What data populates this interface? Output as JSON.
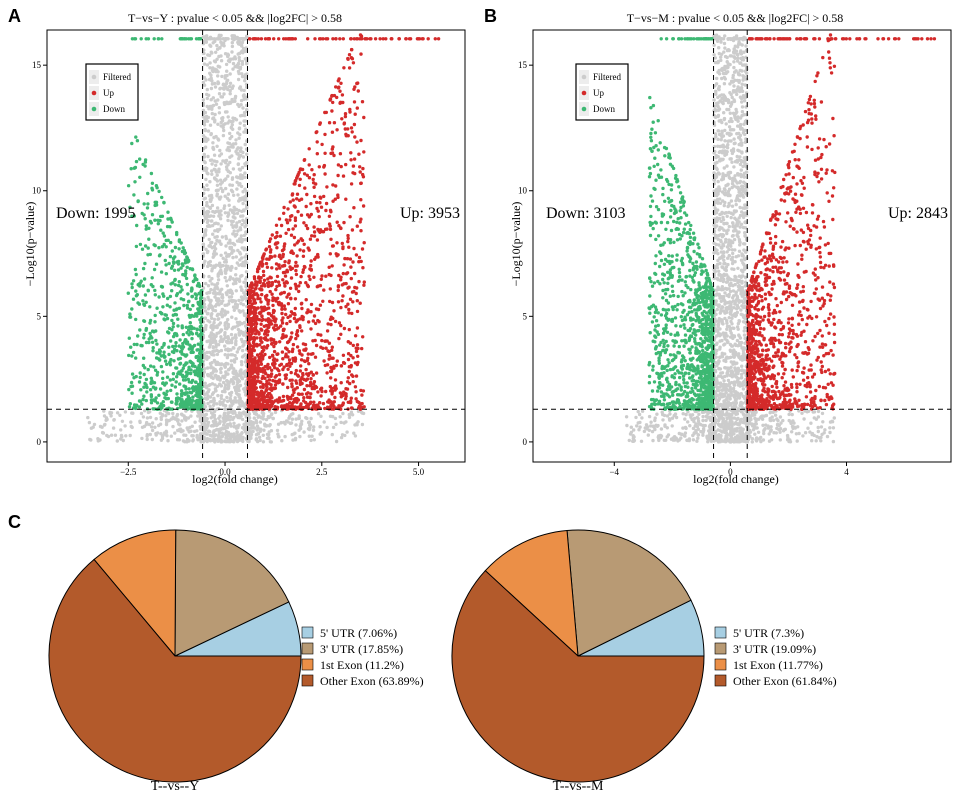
{
  "panels": {
    "a": "A",
    "b": "B",
    "c": "C"
  },
  "colors": {
    "filtered": "#cccccc",
    "up": "#d42a2a",
    "down": "#3db873",
    "utr5": "#a7cfe3",
    "utr3": "#b89a74",
    "exon1": "#eb8f47",
    "other_exon": "#b35a2b"
  },
  "chart_data": [
    {
      "id": "volcano-a",
      "type": "scatter",
      "title": "T−vs−Y : pvalue < 0.05 && |log2FC| > 0.58",
      "xlabel": "log2(fold change)",
      "ylabel": "−Log10(p−value)",
      "xlim": [
        -4.6,
        6.2
      ],
      "ylim": [
        -0.8,
        16.4
      ],
      "xticks": [
        -2.5,
        0.0,
        2.5,
        5.0
      ],
      "xtick_labels": [
        "−2.5",
        "0.0",
        "2.5",
        "5.0"
      ],
      "yticks": [
        0,
        5,
        10,
        15
      ],
      "ytick_labels": [
        "0",
        "5",
        "10",
        "15"
      ],
      "thresholds": {
        "log2fc": 0.58,
        "neg_log10_p": 1.3
      },
      "legend": [
        "Filtered",
        "Up",
        "Down"
      ],
      "legend_position": "top-left",
      "down_label": "Down: 1995",
      "up_label": "Up: 3953",
      "down_count": 1995,
      "up_count": 3953,
      "x_spread_down": 1.9,
      "x_spread_up": 3.0,
      "seed": 11
    },
    {
      "id": "volcano-b",
      "type": "scatter",
      "title": "T−vs−M : pvalue < 0.05 && |log2FC| > 0.58",
      "xlabel": "log2(fold change)",
      "ylabel": "−Log10(p−value)",
      "xlim": [
        -6.8,
        7.6
      ],
      "ylim": [
        -0.8,
        16.4
      ],
      "xticks": [
        -4,
        0,
        4
      ],
      "xtick_labels": [
        "−4",
        "0",
        "4"
      ],
      "yticks": [
        0,
        5,
        10,
        15
      ],
      "ytick_labels": [
        "0",
        "5",
        "10",
        "15"
      ],
      "thresholds": {
        "log2fc": 0.58,
        "neg_log10_p": 1.3
      },
      "legend": [
        "Filtered",
        "Up",
        "Down"
      ],
      "legend_position": "top-left",
      "down_label": "Down: 3103",
      "up_label": "Up: 2843",
      "down_count": 3103,
      "up_count": 2843,
      "x_spread_down": 2.2,
      "x_spread_up": 3.0,
      "seed": 23
    },
    {
      "id": "pie-a",
      "type": "pie",
      "title": "T--vs--Y",
      "labels": [
        "5' UTR",
        "3' UTR",
        "1st Exon",
        "Other Exon"
      ],
      "legend_labels": [
        "5' UTR (7.06%)",
        "3' UTR (17.85%)",
        "1st Exon (11.2%)",
        "Other Exon (63.89%)"
      ],
      "values": [
        7.06,
        17.85,
        11.2,
        63.89
      ]
    },
    {
      "id": "pie-b",
      "type": "pie",
      "title": "T--vs--M",
      "labels": [
        "5' UTR",
        "3' UTR",
        "1st Exon",
        "Other Exon"
      ],
      "legend_labels": [
        "5' UTR (7.3%)",
        "3' UTR (19.09%)",
        "1st Exon (11.77%)",
        "Other Exon (61.84%)"
      ],
      "values": [
        7.3,
        19.09,
        11.77,
        61.84
      ]
    }
  ]
}
